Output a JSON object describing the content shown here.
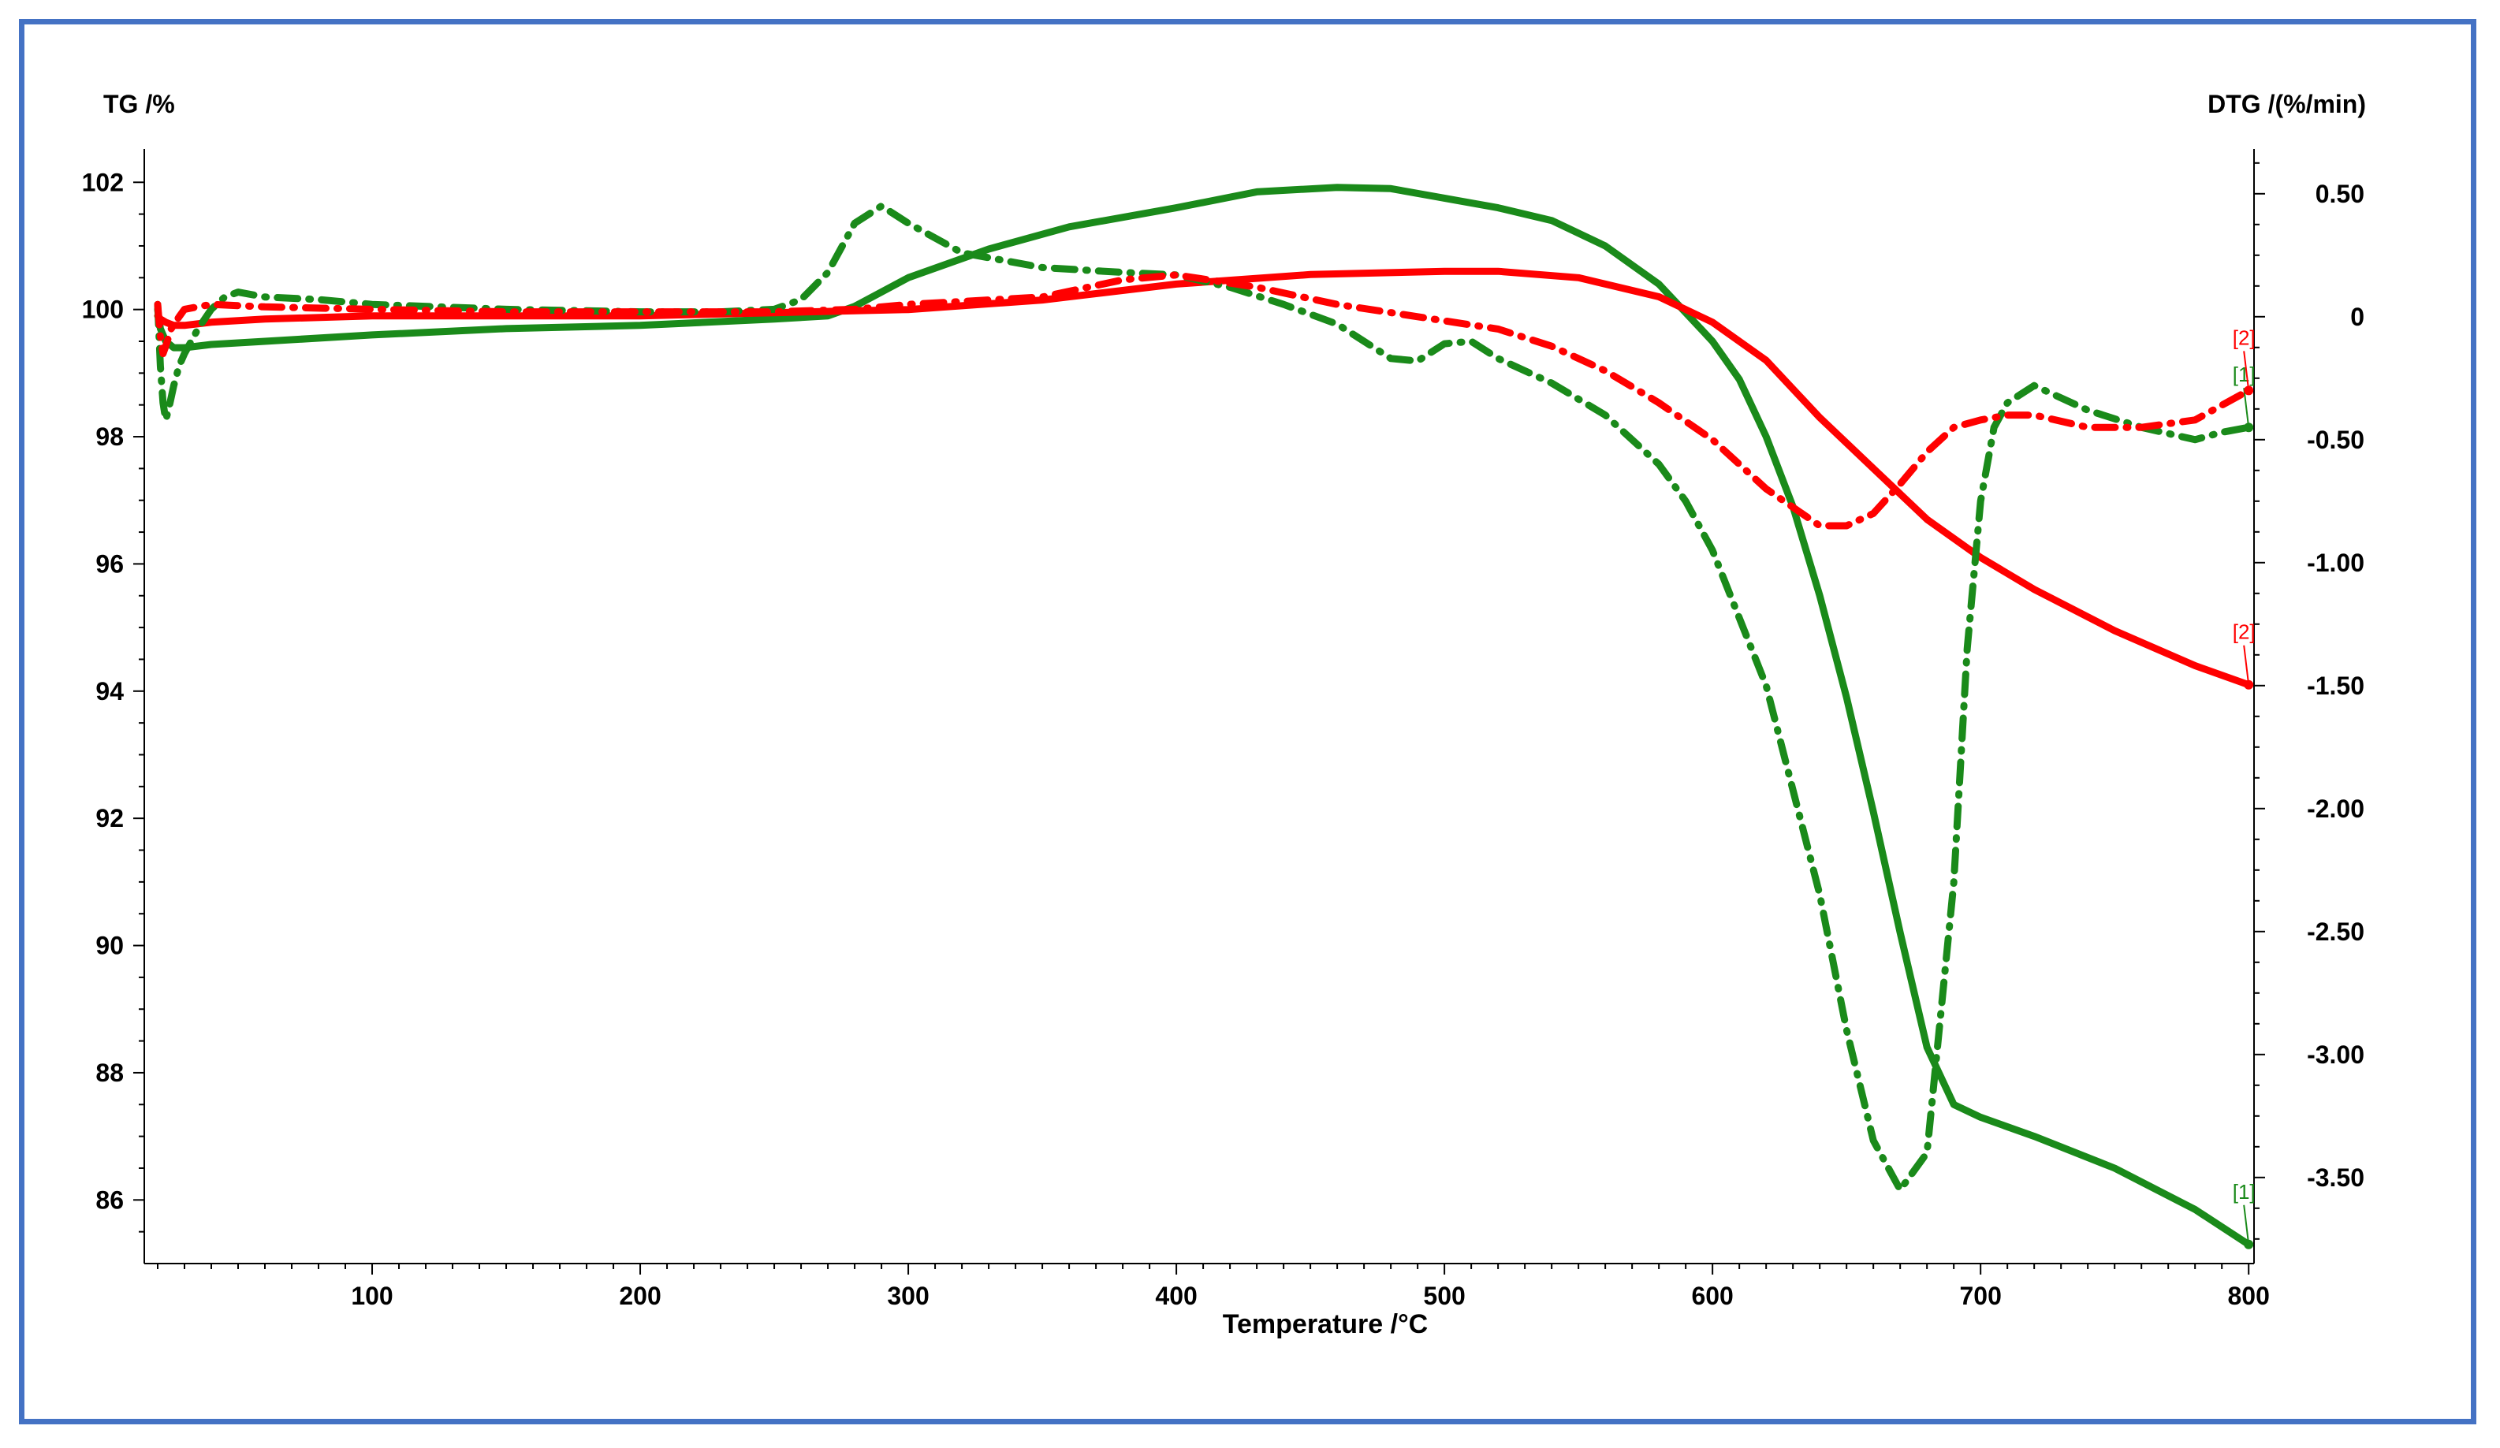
{
  "chart_data": {
    "type": "line",
    "title": "",
    "xlabel": "Temperature /°C",
    "ylabel_left": "TG /%",
    "ylabel_right": "DTG /(%/min)",
    "xlim": [
      15,
      802
    ],
    "ylim_left": [
      85.0,
      102.4
    ],
    "ylim_right": [
      -3.85,
      0.65
    ],
    "x_ticks": [
      100,
      200,
      300,
      400,
      500,
      600,
      700,
      800
    ],
    "x_tick_labels": [
      "100",
      "200",
      "300",
      "400",
      "500",
      "600",
      "700",
      "800"
    ],
    "y_left_ticks": [
      86,
      88,
      90,
      92,
      94,
      96,
      98,
      100,
      102
    ],
    "y_left_tick_labels": [
      "86",
      "88",
      "90",
      "92",
      "94",
      "96",
      "98",
      "100",
      "102"
    ],
    "y_right_ticks": [
      0.5,
      0,
      -0.5,
      -1.0,
      -1.5,
      -2.0,
      -2.5,
      -3.0,
      -3.5
    ],
    "y_right_tick_labels": [
      "0.50",
      "0",
      "-0.50",
      "-1.00",
      "-1.50",
      "-2.00",
      "-2.50",
      "-3.00",
      "-3.50"
    ],
    "grid": false,
    "colors": {
      "green": "#1a8a1a",
      "red": "#ff0000",
      "frame": "#4472c4",
      "axis": "#000000"
    },
    "series": [
      {
        "id": "tg1",
        "axis": "left",
        "style": "solid",
        "color": "#1a8a1a",
        "end_label": "[1]",
        "x": [
          20,
          21,
          23,
          26,
          30,
          40,
          60,
          100,
          150,
          200,
          250,
          270,
          280,
          300,
          330,
          360,
          400,
          430,
          460,
          480,
          500,
          520,
          540,
          560,
          580,
          600,
          610,
          620,
          630,
          640,
          650,
          660,
          670,
          680,
          690,
          700,
          720,
          750,
          780,
          800
        ],
        "y": [
          100.0,
          99.7,
          99.5,
          99.4,
          99.4,
          99.45,
          99.5,
          99.6,
          99.7,
          99.75,
          99.85,
          99.9,
          100.05,
          100.5,
          100.95,
          101.3,
          101.6,
          101.85,
          101.92,
          101.9,
          101.75,
          101.6,
          101.4,
          101.0,
          100.4,
          99.5,
          98.9,
          98.0,
          96.9,
          95.5,
          93.9,
          92.1,
          90.2,
          88.4,
          87.5,
          87.3,
          87.0,
          86.5,
          85.85,
          85.3
        ]
      },
      {
        "id": "tg2",
        "axis": "left",
        "style": "solid",
        "color": "#ff0000",
        "end_label": "[2]",
        "x": [
          20,
          21,
          23,
          26,
          30,
          40,
          60,
          100,
          150,
          200,
          250,
          300,
          350,
          400,
          450,
          500,
          520,
          550,
          580,
          600,
          620,
          640,
          660,
          680,
          700,
          720,
          750,
          780,
          800
        ],
        "y": [
          99.9,
          99.85,
          99.8,
          99.75,
          99.75,
          99.8,
          99.85,
          99.9,
          99.9,
          99.9,
          99.95,
          100.0,
          100.15,
          100.4,
          100.55,
          100.6,
          100.6,
          100.5,
          100.2,
          99.8,
          99.2,
          98.3,
          97.5,
          96.7,
          96.1,
          95.6,
          94.95,
          94.4,
          94.1
        ]
      },
      {
        "id": "dtg1",
        "axis": "right",
        "style": "dashdot",
        "color": "#1a8a1a",
        "end_label": "[1]",
        "x": [
          20,
          21,
          22,
          23,
          24,
          26,
          28,
          30,
          35,
          40,
          45,
          50,
          60,
          80,
          100,
          150,
          200,
          230,
          250,
          260,
          270,
          280,
          290,
          300,
          320,
          350,
          380,
          400,
          420,
          440,
          460,
          480,
          490,
          500,
          510,
          520,
          540,
          560,
          580,
          590,
          600,
          620,
          640,
          650,
          660,
          670,
          680,
          690,
          695,
          700,
          705,
          710,
          720,
          740,
          760,
          780,
          790,
          800
        ],
        "y": [
          0.05,
          -0.2,
          -0.35,
          -0.42,
          -0.38,
          -0.28,
          -0.2,
          -0.15,
          -0.05,
          0.03,
          0.08,
          0.1,
          0.08,
          0.07,
          0.05,
          0.03,
          0.02,
          0.02,
          0.03,
          0.07,
          0.18,
          0.38,
          0.45,
          0.38,
          0.26,
          0.2,
          0.18,
          0.17,
          0.12,
          0.05,
          -0.03,
          -0.17,
          -0.18,
          -0.11,
          -0.1,
          -0.17,
          -0.27,
          -0.4,
          -0.6,
          -0.75,
          -0.95,
          -1.5,
          -2.35,
          -2.9,
          -3.35,
          -3.55,
          -3.4,
          -2.3,
          -1.35,
          -0.75,
          -0.45,
          -0.35,
          -0.28,
          -0.38,
          -0.45,
          -0.5,
          -0.47,
          -0.45
        ]
      },
      {
        "id": "dtg2",
        "axis": "right",
        "style": "dashdot",
        "color": "#ff0000",
        "end_label": "[2]",
        "x": [
          20,
          21,
          22,
          23,
          25,
          28,
          30,
          40,
          60,
          100,
          150,
          200,
          250,
          280,
          300,
          350,
          380,
          400,
          430,
          460,
          490,
          520,
          540,
          560,
          580,
          600,
          620,
          640,
          650,
          660,
          670,
          680,
          690,
          700,
          710,
          720,
          740,
          760,
          780,
          800
        ],
        "y": [
          0.05,
          -0.08,
          -0.15,
          -0.12,
          -0.05,
          0.0,
          0.03,
          0.05,
          0.04,
          0.03,
          0.02,
          0.02,
          0.02,
          0.03,
          0.05,
          0.08,
          0.15,
          0.17,
          0.12,
          0.05,
          0.0,
          -0.05,
          -0.12,
          -0.22,
          -0.35,
          -0.5,
          -0.7,
          -0.85,
          -0.85,
          -0.8,
          -0.68,
          -0.55,
          -0.45,
          -0.42,
          -0.4,
          -0.4,
          -0.45,
          -0.45,
          -0.42,
          -0.3
        ]
      }
    ]
  }
}
